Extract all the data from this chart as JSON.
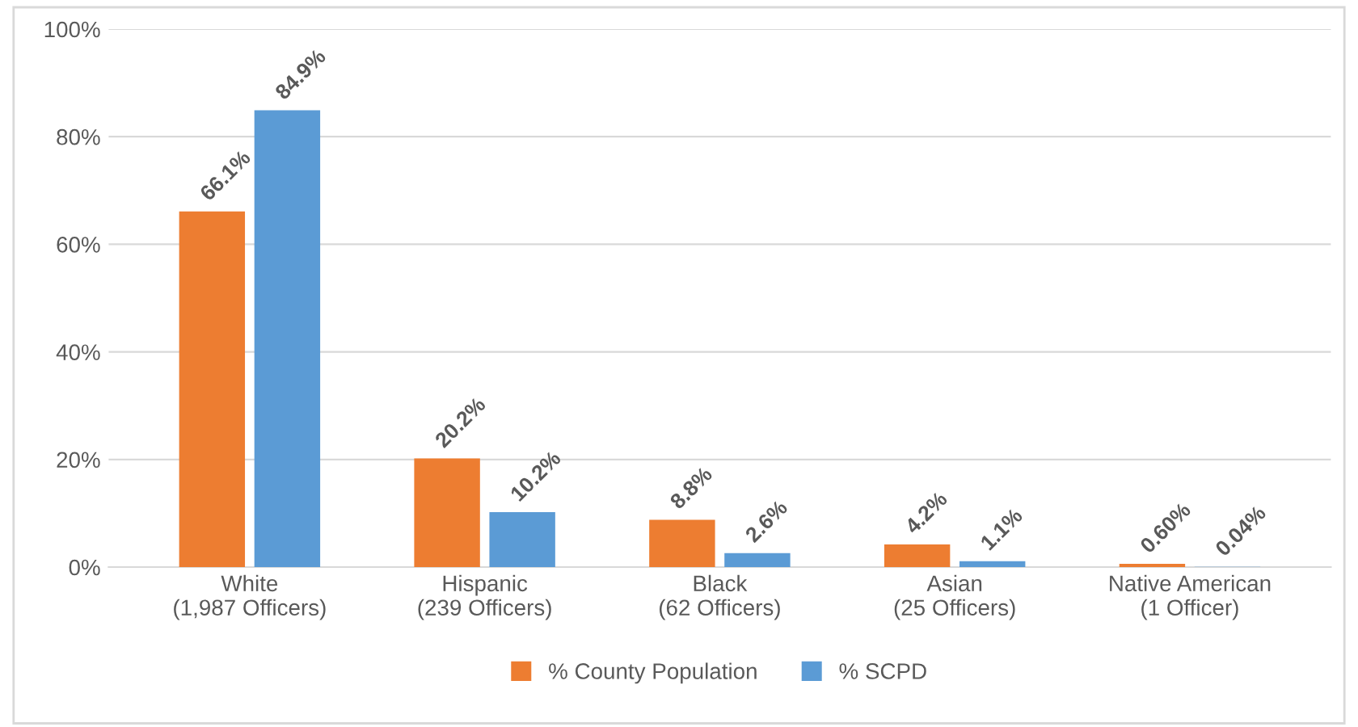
{
  "chart_data": {
    "type": "bar",
    "categories": [
      "White\n(1,987 Officers)",
      "Hispanic\n(239 Officers)",
      "Black\n(62 Officers)",
      "Asian\n(25 Officers)",
      "Native American\n(1 Officer)"
    ],
    "series": [
      {
        "name": "% County Population",
        "color": "#ed7d31",
        "values": [
          66.1,
          20.2,
          8.8,
          4.2,
          0.6
        ],
        "value_labels": [
          "66.1%",
          "20.2%",
          "8.8%",
          "4.2%",
          "0.60%"
        ]
      },
      {
        "name": "% SCPD",
        "color": "#5b9bd5",
        "values": [
          84.9,
          10.2,
          2.6,
          1.1,
          0.04
        ],
        "value_labels": [
          "84.9%",
          "10.2%",
          "2.6%",
          "1.1%",
          "0.04%"
        ]
      }
    ],
    "ylim": [
      0,
      100
    ],
    "yticks": [
      {
        "value": 0,
        "label": "0%"
      },
      {
        "value": 20,
        "label": "20%"
      },
      {
        "value": 40,
        "label": "40%"
      },
      {
        "value": 60,
        "label": "60%"
      },
      {
        "value": 80,
        "label": "80%"
      },
      {
        "value": 100,
        "label": "100%"
      }
    ],
    "grid": "y",
    "legend": "bottom"
  }
}
